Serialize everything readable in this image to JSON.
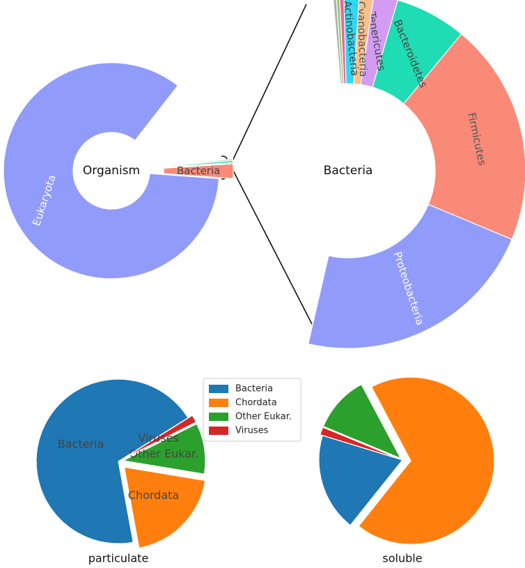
{
  "chart_data": [
    {
      "type": "donut",
      "title": "Organism",
      "categories": [
        "Eukaryota",
        "Bacteria",
        null,
        null
      ],
      "values": [
        84.4,
        2.2,
        0.3,
        0.2
      ],
      "colors": [
        "#919bfa",
        "#f98a78",
        "#2ed3b0",
        "#86cc6a"
      ],
      "label_colors": [
        "#ffffff",
        "#444444",
        null,
        null
      ],
      "startangle": 52,
      "normalize": false,
      "explode": [
        0,
        0.13,
        0.13,
        0.13
      ]
    },
    {
      "type": "donut",
      "title": "Bacteria",
      "categories": [
        "Proteobacteria",
        "Firmicutes",
        "Bacteroidetes",
        "Tenericutes",
        "Cyanobacteria",
        "Actinobacteria",
        null,
        null,
        null
      ],
      "values": [
        22.3,
        20.3,
        6.5,
        2.2,
        1.3,
        1.4,
        0.4,
        0.3,
        0.3
      ],
      "colors": [
        "#919bfa",
        "#f98a78",
        "#1fdcb4",
        "#d39cf2",
        "#f7c08e",
        "#2fd7f2",
        "#f0639a",
        "#8ecf6e",
        "#b0b0b0"
      ],
      "label_colors": [
        "#ffffff",
        "#555555",
        "#444444",
        "#444444",
        "#555555",
        "#444444",
        null,
        null,
        null
      ],
      "startangle": -103,
      "normalize": false
    },
    {
      "type": "pie",
      "title": "particulate",
      "categories": [
        "Bacteria",
        "Chordata",
        "Other Eukar.",
        "Viruses"
      ],
      "values": [
        69,
        19.5,
        10,
        1.5
      ],
      "colors": [
        "#1f77b4",
        "#ff7f0e",
        "#2ca02c",
        "#d62728"
      ],
      "startangle": 32,
      "explode": [
        0,
        0.1,
        0.06,
        0.06
      ],
      "legend": "upper right"
    },
    {
      "type": "pie",
      "title": "soluble",
      "values": [
        19,
        68.5,
        11,
        1.5
      ],
      "colors": [
        "#1f77b4",
        "#ff7f0e",
        "#2ca02c",
        "#d62728"
      ],
      "startangle": 163,
      "explode": [
        0,
        0.1,
        0.03,
        0.03
      ]
    }
  ]
}
